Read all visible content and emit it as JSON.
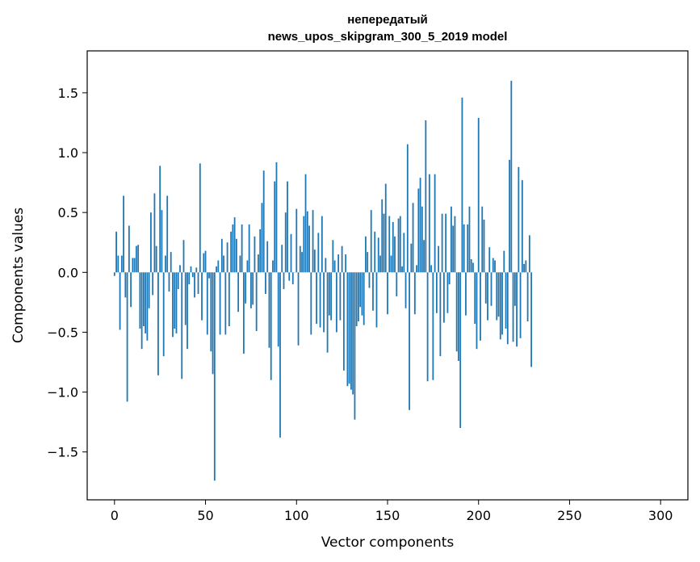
{
  "chart_data": {
    "type": "bar",
    "title": [
      "непередатый",
      "news_upos_skipgram_300_5_2019 model"
    ],
    "xlabel": "Vector components",
    "ylabel": "Components values",
    "xlim": [
      -15,
      315
    ],
    "ylim": [
      -1.9,
      1.85
    ],
    "xticks": [
      0,
      50,
      100,
      150,
      200,
      250,
      300
    ],
    "yticks": [
      -1.5,
      -1.0,
      -0.5,
      0.0,
      0.5,
      1.0,
      1.5
    ],
    "ytick_labels": [
      "−1.5",
      "−1.0",
      "−0.5",
      "0.0",
      "0.5",
      "1.0",
      "1.5"
    ],
    "grid": false,
    "bar_color": "#1f77b4",
    "values": [
      -0.03,
      0.34,
      0.14,
      -0.48,
      0.14,
      0.64,
      -0.21,
      -1.08,
      0.39,
      -0.29,
      0.12,
      0.12,
      0.22,
      0.23,
      -0.47,
      -0.64,
      -0.45,
      -0.51,
      -0.57,
      -0.3,
      0.5,
      -0.19,
      0.66,
      0.22,
      -0.86,
      0.89,
      0.52,
      -0.7,
      0.14,
      0.64,
      -0.16,
      0.17,
      -0.54,
      -0.47,
      -0.51,
      -0.14,
      0.06,
      -0.89,
      0.27,
      -0.44,
      -0.64,
      -0.1,
      0.05,
      -0.04,
      -0.21,
      0.04,
      -0.18,
      0.91,
      -0.4,
      0.16,
      0.18,
      -0.52,
      -0.05,
      -0.66,
      -0.85,
      -1.74,
      0.05,
      0.1,
      -0.52,
      0.28,
      0.14,
      -0.52,
      0.25,
      -0.45,
      0.34,
      0.4,
      0.46,
      0.28,
      -0.33,
      0.14,
      0.4,
      -0.68,
      -0.26,
      0.1,
      0.4,
      -0.3,
      -0.27,
      0.3,
      -0.49,
      0.15,
      0.36,
      0.58,
      0.85,
      -0.18,
      0.26,
      -0.63,
      -0.9,
      0.1,
      0.76,
      0.92,
      -0.62,
      -1.38,
      0.23,
      -0.14,
      0.5,
      0.76,
      -0.07,
      0.32,
      -0.1,
      0.0,
      0.53,
      -0.61,
      0.22,
      0.17,
      0.47,
      0.82,
      0.51,
      0.39,
      -0.52,
      0.52,
      0.19,
      -0.43,
      0.33,
      -0.46,
      0.47,
      -0.5,
      0.12,
      -0.67,
      -0.36,
      -0.4,
      0.27,
      0.1,
      -0.5,
      0.15,
      -0.4,
      0.22,
      -0.82,
      0.15,
      -0.95,
      -0.93,
      -0.98,
      -1.02,
      -1.23,
      -0.45,
      -0.41,
      -0.29,
      -0.36,
      -0.44,
      0.3,
      0.17,
      -0.13,
      0.52,
      -0.32,
      0.34,
      -0.46,
      0.29,
      0.14,
      0.61,
      0.49,
      0.74,
      -0.35,
      0.47,
      0.14,
      0.42,
      0.3,
      -0.2,
      0.45,
      0.47,
      0.05,
      0.33,
      -0.3,
      1.07,
      -1.15,
      0.24,
      0.58,
      -0.35,
      0.06,
      0.7,
      0.79,
      0.55,
      0.27,
      1.27,
      -0.91,
      0.82,
      0.06,
      -0.9,
      0.82,
      -0.34,
      0.22,
      -0.7,
      0.49,
      -0.42,
      0.49,
      -0.34,
      -0.1,
      0.55,
      0.39,
      0.47,
      -0.66,
      -0.74,
      -1.3,
      1.46,
      0.4,
      -0.36,
      0.4,
      0.55,
      0.11,
      0.08,
      -0.43,
      -0.64,
      1.29,
      -0.57,
      0.55,
      0.44,
      -0.26,
      -0.4,
      0.21,
      -0.28,
      0.12,
      0.1,
      -0.4,
      -0.37,
      -0.56,
      -0.52,
      0.18,
      -0.47,
      -0.6,
      0.94,
      1.6,
      -0.58,
      -0.28,
      -0.62,
      0.88,
      -0.55,
      0.77,
      0.07,
      0.1,
      -0.41,
      0.31,
      -0.79
    ]
  }
}
